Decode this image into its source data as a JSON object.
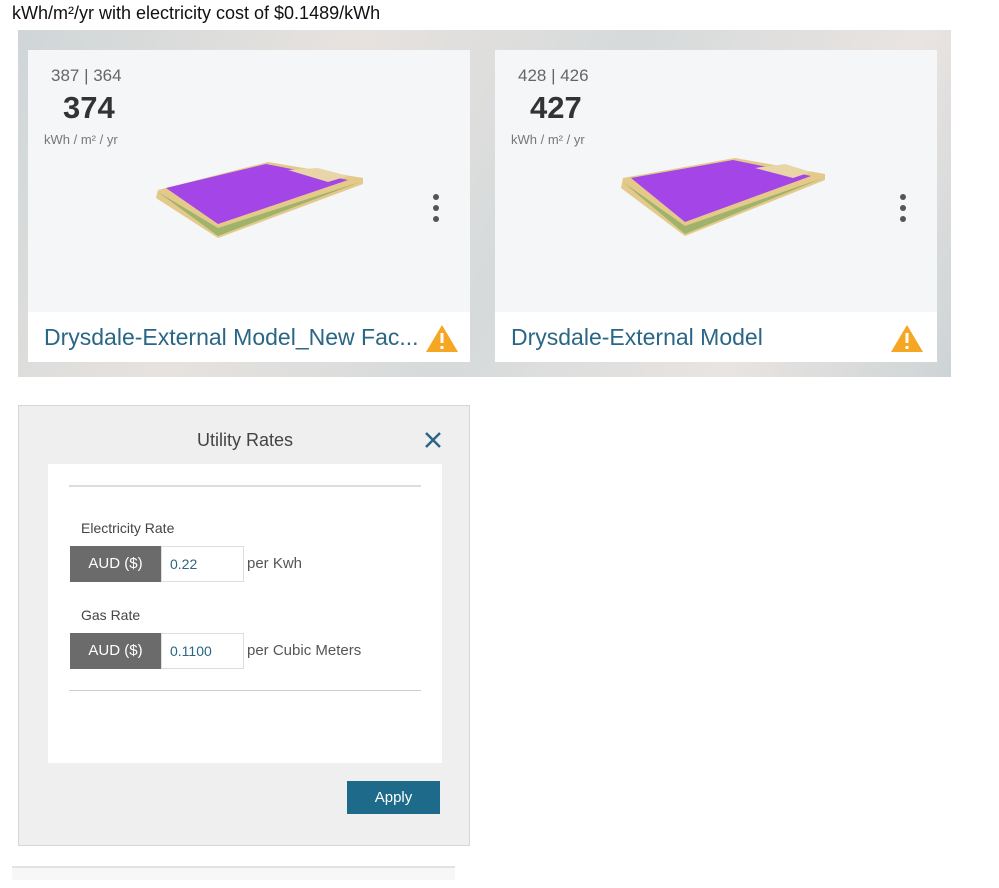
{
  "caption": "kWh/m²/yr with electricity cost of $0.1489/kWh",
  "cards": [
    {
      "range": "387 | 364",
      "value": "374",
      "unit": "kWh / m² / yr",
      "name": "Drysdale-External Model_New Fac..."
    },
    {
      "range": "428 | 426",
      "value": "427",
      "unit": "kWh / m² / yr",
      "name": "Drysdale-External Model"
    }
  ],
  "dialog": {
    "title": "Utility Rates",
    "fields": [
      {
        "label": "Electricity Rate",
        "currency": "AUD ($)",
        "value": "0.22",
        "unit": "per Kwh"
      },
      {
        "label": "Gas Rate",
        "currency": "AUD ($)",
        "value": "0.1100",
        "unit": "per Cubic Meters"
      }
    ],
    "button": "Apply"
  }
}
